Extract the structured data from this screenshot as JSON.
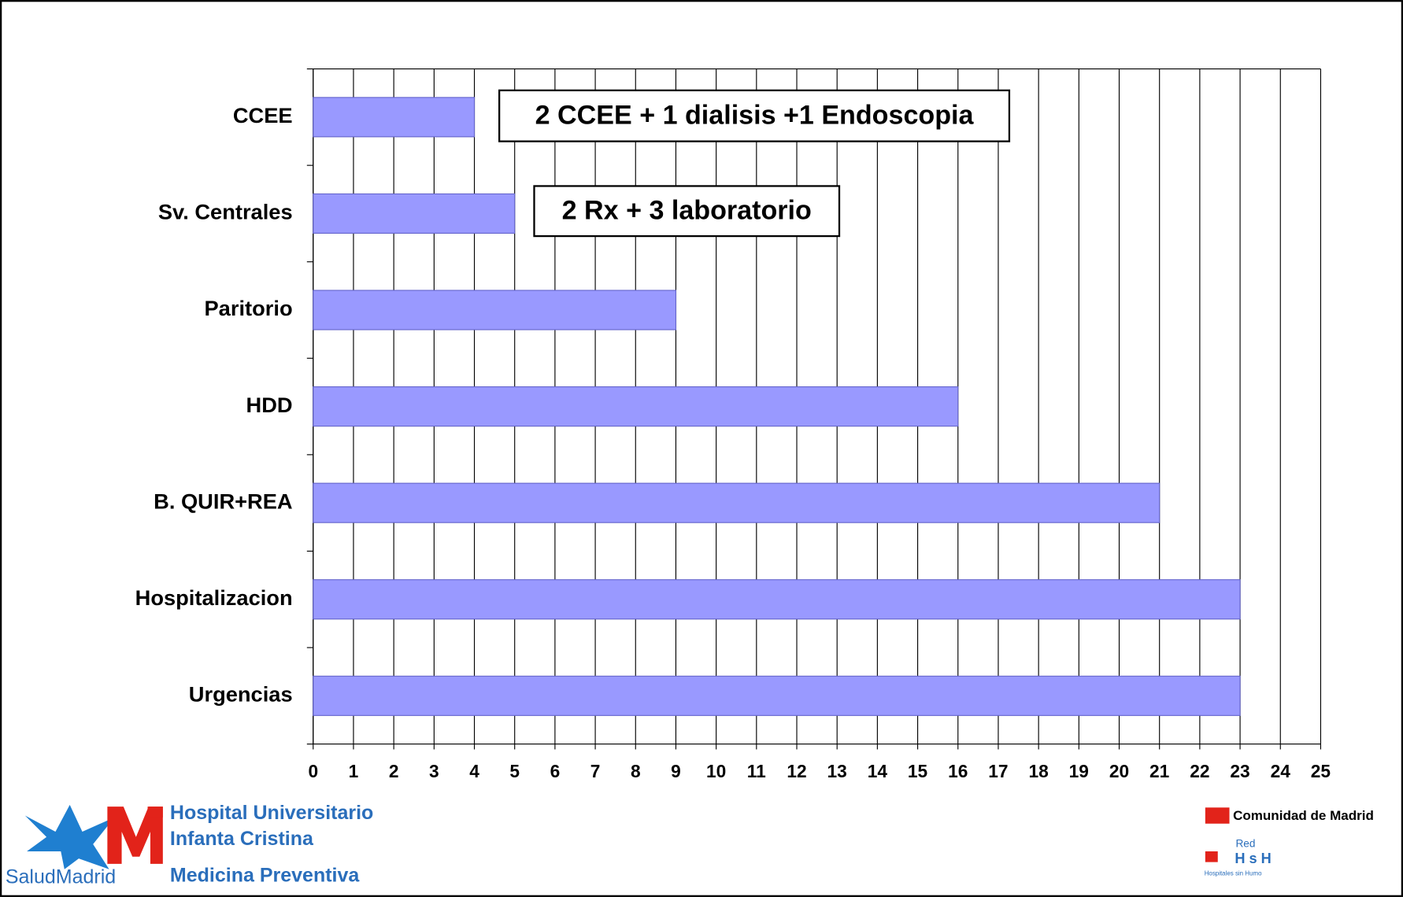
{
  "chart_data": {
    "type": "barh",
    "categories": [
      "CCEE",
      "Sv. Centrales",
      "Paritorio",
      "HDD",
      "B. QUIR+REA",
      "Hospitalizacion",
      "Urgencias"
    ],
    "values": [
      4,
      5,
      9,
      16,
      21,
      23,
      23
    ],
    "color": "#9999ff",
    "xlim": [
      0,
      25
    ],
    "xticks": [
      0,
      1,
      2,
      3,
      4,
      5,
      6,
      7,
      8,
      9,
      10,
      11,
      12,
      13,
      14,
      15,
      16,
      17,
      18,
      19,
      20,
      21,
      22,
      23,
      24,
      25
    ],
    "grid": true,
    "annotations": [
      "2 CCEE + 1 dialisis +1 Endoscopia",
      "2 Rx + 3 laboratorio"
    ]
  },
  "logos": {
    "hospital_line1": "Hospital Universitario",
    "hospital_line2": "Infanta Cristina",
    "salud": "SaludMadrid",
    "department": "Medicina Preventiva",
    "comunidad": "Comunidad de Madrid",
    "red": "Red",
    "hsh": "H s H",
    "hsh_sub": "Hospitales sin Humo"
  }
}
